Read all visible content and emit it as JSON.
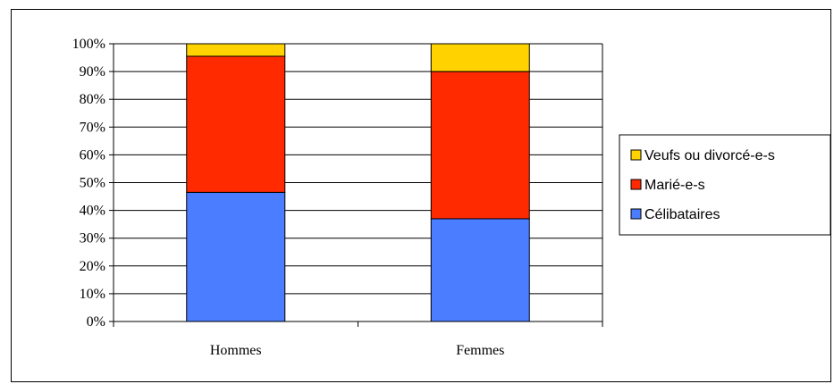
{
  "chart_data": {
    "type": "bar",
    "stacked": true,
    "percent": true,
    "categories": [
      "Hommes",
      "Femmes"
    ],
    "series": [
      {
        "name": "Célibataires",
        "values": [
          46.5,
          37
        ],
        "color": "#4a7dff"
      },
      {
        "name": "Marié-e-s",
        "values": [
          49,
          53
        ],
        "color": "#ff2a00"
      },
      {
        "name": "Veufs ou divorcé-e-s",
        "values": [
          4.5,
          10
        ],
        "color": "#ffd200"
      }
    ],
    "ylim": [
      0,
      100
    ],
    "y_ticks": [
      "0%",
      "10%",
      "20%",
      "30%",
      "40%",
      "50%",
      "60%",
      "70%",
      "80%",
      "90%",
      "100%"
    ],
    "grid": true,
    "legend_position": "right",
    "legend_order": [
      "Veufs ou divorcé-e-s",
      "Marié-e-s",
      "Célibataires"
    ]
  }
}
